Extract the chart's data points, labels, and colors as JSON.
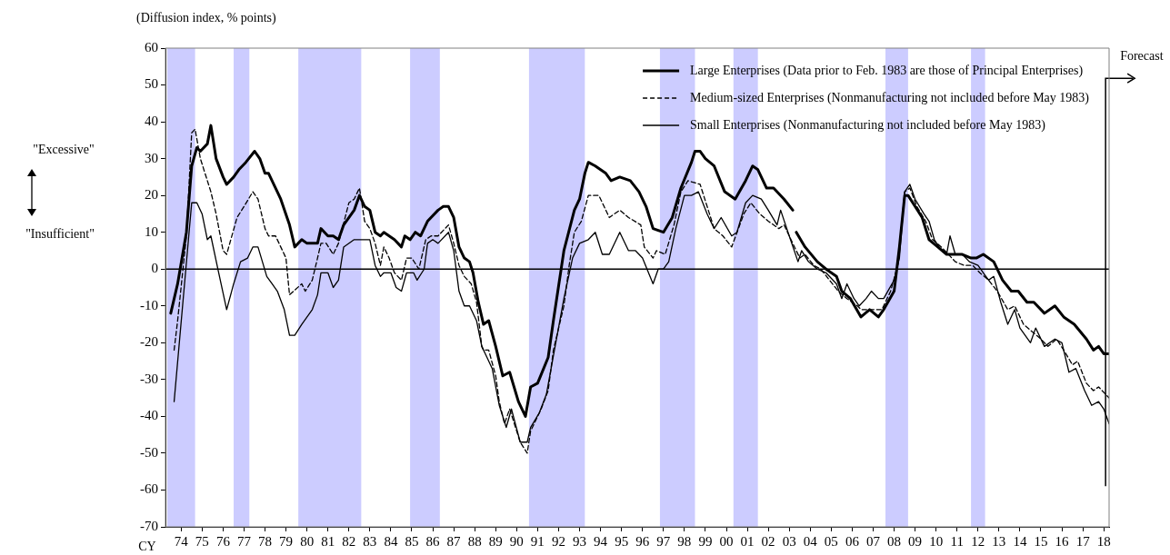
{
  "chart_data": {
    "type": "line",
    "ylabel": "(Diffusion index, % points)",
    "xlabel": "CY",
    "annotations": [
      "\"Excessive\"",
      "\"Insufficient\""
    ],
    "xlim": [
      "1973-10",
      "2018-10"
    ],
    "xticks": [
      {
        "value": "1974-07",
        "label": "74"
      },
      {
        "value": "1975-07",
        "label": "75"
      },
      {
        "value": "1976-07",
        "label": "76"
      },
      {
        "value": "1977-07",
        "label": "77"
      },
      {
        "value": "1978-07",
        "label": "78"
      },
      {
        "value": "1979-07",
        "label": "79"
      },
      {
        "value": "1980-07",
        "label": "80"
      },
      {
        "value": "1981-07",
        "label": "81"
      },
      {
        "value": "1982-07",
        "label": "82"
      },
      {
        "value": "1983-07",
        "label": "83"
      },
      {
        "value": "1984-07",
        "label": "84"
      },
      {
        "value": "1985-07",
        "label": "85"
      },
      {
        "value": "1986-07",
        "label": "86"
      },
      {
        "value": "1987-07",
        "label": "87"
      },
      {
        "value": "1988-07",
        "label": "88"
      },
      {
        "value": "1989-07",
        "label": "89"
      },
      {
        "value": "1990-07",
        "label": "90"
      },
      {
        "value": "1991-07",
        "label": "91"
      },
      {
        "value": "1992-07",
        "label": "92"
      },
      {
        "value": "1993-07",
        "label": "93"
      },
      {
        "value": "1994-07",
        "label": "94"
      },
      {
        "value": "1995-07",
        "label": "95"
      },
      {
        "value": "1996-07",
        "label": "96"
      },
      {
        "value": "1997-07",
        "label": "97"
      },
      {
        "value": "1998-07",
        "label": "98"
      },
      {
        "value": "1999-07",
        "label": "99"
      },
      {
        "value": "2000-07",
        "label": "00"
      },
      {
        "value": "2001-07",
        "label": "01"
      },
      {
        "value": "2002-07",
        "label": "02"
      },
      {
        "value": "2003-07",
        "label": "03"
      },
      {
        "value": "2004-07",
        "label": "04"
      },
      {
        "value": "2005-07",
        "label": "05"
      },
      {
        "value": "2006-07",
        "label": "06"
      },
      {
        "value": "2007-07",
        "label": "07"
      },
      {
        "value": "2008-07",
        "label": "08"
      },
      {
        "value": "2009-07",
        "label": "09"
      },
      {
        "value": "2010-07",
        "label": "10"
      },
      {
        "value": "2011-07",
        "label": "11"
      },
      {
        "value": "2012-07",
        "label": "12"
      },
      {
        "value": "2013-07",
        "label": "13"
      },
      {
        "value": "2014-07",
        "label": "14"
      },
      {
        "value": "2015-07",
        "label": "15"
      },
      {
        "value": "2016-07",
        "label": "16"
      },
      {
        "value": "2017-07",
        "label": "17"
      },
      {
        "value": "2018-07",
        "label": "18"
      }
    ],
    "ylim": [
      -70,
      60
    ],
    "yticks": [
      -70,
      -60,
      -50,
      -40,
      -30,
      -20,
      -10,
      0,
      10,
      20,
      30,
      40,
      50,
      60
    ],
    "grid": false,
    "legend": "top right",
    "marker": "none",
    "series": [
      {
        "name": "Large Enterprises (Data prior to Feb. 1983 are those of Principal Enterprises)",
        "color": "#000000",
        "line_style": "solid",
        "x": [
          "1974-01",
          "1974-05",
          "1974-10",
          "1975-01",
          "1975-04",
          "1975-06",
          "1975-10",
          "1975-12",
          "1976-03",
          "1976-07",
          "1976-09",
          "1977-01",
          "1977-04",
          "1977-08",
          "1978-01",
          "1978-04",
          "1978-07",
          "1978-09",
          "1979-01",
          "1979-04",
          "1979-09",
          "1979-12",
          "1980-04",
          "1980-07",
          "1981-01",
          "1981-03",
          "1981-07",
          "1981-10",
          "1982-01",
          "1982-04",
          "1982-10",
          "1983-01",
          "1983-04",
          "1983-07",
          "1983-10",
          "1984-01",
          "1984-03",
          "1984-09",
          "1985-01",
          "1985-03",
          "1985-06",
          "1985-09",
          "1985-12",
          "1986-04",
          "1986-10",
          "1987-01",
          "1987-04",
          "1987-07",
          "1987-10",
          "1988-01",
          "1988-04",
          "1988-06",
          "1988-09",
          "1988-12",
          "1989-03",
          "1989-07",
          "1989-11",
          "1990-03",
          "1990-08",
          "1990-12",
          "1991-03",
          "1991-07",
          "1992-01",
          "1992-04",
          "1992-10",
          "1993-04",
          "1993-07",
          "1993-10",
          "1993-12",
          "1994-04",
          "1994-10",
          "1995-01",
          "1995-06",
          "1995-12",
          "1996-05",
          "1996-09",
          "1997-01",
          "1997-07",
          "1997-12",
          "1998-05",
          "1998-11",
          "1999-01",
          "1999-04",
          "1999-07",
          "1999-12",
          "2000-06",
          "2000-12",
          "2001-06",
          "2001-10",
          "2002-01",
          "2002-06",
          "2002-10",
          "2003-04",
          "2003-09",
          "2003-10",
          "2003-11",
          "2004-04",
          "2004-11",
          "2005-04",
          "2005-10",
          "2006-01",
          "2006-06",
          "2006-12",
          "2007-05",
          "2007-10",
          "2008-01",
          "2008-07",
          "2008-10",
          "2009-01",
          "2009-03",
          "2009-07",
          "2009-11",
          "2010-03",
          "2010-08",
          "2011-01",
          "2011-05",
          "2011-10",
          "2012-03",
          "2012-06",
          "2012-10",
          "2013-04",
          "2013-09",
          "2014-02",
          "2014-06",
          "2014-11",
          "2015-03",
          "2015-09",
          "2016-03",
          "2016-08",
          "2017-02",
          "2017-09",
          "2018-01",
          "2018-04",
          "2018-07",
          "2018-10"
        ],
        "values": [
          -12,
          -4,
          10,
          28,
          33,
          32,
          34,
          39,
          30,
          25,
          23,
          25,
          27,
          29,
          32,
          30,
          26,
          26,
          22,
          19,
          12,
          6,
          8,
          7,
          7,
          11,
          9,
          9,
          8,
          12,
          16,
          20,
          17,
          16,
          10,
          9,
          10,
          8,
          6,
          9,
          8,
          10,
          9,
          13,
          16,
          17,
          17,
          14,
          6,
          3,
          2,
          -1,
          -9,
          -15,
          -14,
          -21,
          -29,
          -28,
          -36,
          -40,
          -32,
          -31,
          -24,
          -14,
          5,
          16,
          19,
          26,
          29,
          28,
          26,
          24,
          25,
          24,
          21,
          17,
          11,
          10,
          14,
          22,
          29,
          32,
          32,
          30,
          28,
          21,
          19,
          24,
          28,
          27,
          22,
          22,
          19,
          16,
          null,
          10,
          6,
          2,
          0,
          -2,
          -6,
          -8,
          -13,
          -11,
          -13,
          -11,
          -6,
          6,
          20,
          20,
          17,
          14,
          8,
          6,
          4,
          4,
          4,
          3,
          3,
          4,
          2,
          -3,
          -6,
          -6,
          -9,
          -9,
          -12,
          -10,
          -13,
          -15,
          -19,
          -22,
          -21,
          -23,
          -23
        ]
      },
      {
        "name": "Medium-sized Enterprises (Nonmanufacturing not included before May 1983)",
        "color": "#000000",
        "line_style": "dashed",
        "x": [
          "1974-03",
          "1974-05",
          "1974-10",
          "1975-01",
          "1975-03",
          "1975-06",
          "1975-12",
          "1976-03",
          "1976-07",
          "1976-09",
          "1977-03",
          "1977-07",
          "1977-12",
          "1978-03",
          "1978-07",
          "1978-09",
          "1979-01",
          "1979-07",
          "1979-09",
          "1980-04",
          "1980-06",
          "1980-10",
          "1981-01",
          "1981-03",
          "1981-06",
          "1981-10",
          "1982-01",
          "1982-07",
          "1982-10",
          "1983-01",
          "1983-04",
          "1983-07",
          "1983-10",
          "1984-01",
          "1984-03",
          "1984-06",
          "1984-09",
          "1985-01",
          "1985-04",
          "1985-07",
          "1985-11",
          "1986-03",
          "1986-06",
          "1986-10",
          "1987-04",
          "1987-07",
          "1987-10",
          "1988-01",
          "1988-05",
          "1988-08",
          "1988-11",
          "1988-12",
          "1989-03",
          "1989-07",
          "1989-09",
          "1989-12",
          "1990-03",
          "1990-09",
          "1991-01",
          "1991-03",
          "1991-09",
          "1992-01",
          "1992-04",
          "1992-10",
          "1993-01",
          "1993-04",
          "1993-08",
          "1993-12",
          "1994-06",
          "1994-12",
          "1995-06",
          "1995-11",
          "1996-06",
          "1996-08",
          "1997-01",
          "1997-03",
          "1997-08",
          "1998-01",
          "1998-05",
          "1998-09",
          "1999-04",
          "1999-08",
          "1999-12",
          "2000-05",
          "2000-10",
          "2001-05",
          "2001-09",
          "2002-02",
          "2002-07",
          "2003-01",
          "2003-04",
          "2003-10",
          "2004-01",
          "2004-04",
          "2004-09",
          "2005-01",
          "2005-06",
          "2005-11",
          "2006-04",
          "2006-10",
          "2006-12",
          "2007-06",
          "2007-12",
          "2008-05",
          "2008-09",
          "2009-01",
          "2009-04",
          "2009-08",
          "2010-01",
          "2010-05",
          "2010-10",
          "2011-02",
          "2011-06",
          "2011-11",
          "2012-04",
          "2012-08",
          "2013-01",
          "2013-06",
          "2013-12",
          "2014-04",
          "2014-09",
          "2015-02",
          "2015-07",
          "2015-11",
          "2016-04",
          "2016-08",
          "2017-01",
          "2017-04",
          "2017-09",
          "2018-01",
          "2018-04",
          "2018-10"
        ],
        "values": [
          -22,
          -14,
          9,
          37,
          38,
          30,
          21,
          15,
          5,
          4,
          14,
          17,
          21,
          19,
          11,
          9,
          9,
          3,
          -7,
          -4,
          -6,
          -3,
          3,
          7,
          7,
          4,
          7,
          18,
          19,
          22,
          13,
          11,
          7,
          1,
          6,
          3,
          -1,
          -3,
          3,
          3,
          0,
          8,
          9,
          9,
          12,
          7,
          1,
          -2,
          -4,
          -9,
          -21,
          -22,
          -22,
          -29,
          -36,
          -42,
          -38,
          -47,
          -50,
          -44,
          -38,
          -33,
          -22,
          -10,
          1,
          10,
          13,
          20,
          20,
          14,
          16,
          14,
          12,
          6,
          3,
          5,
          4,
          12,
          21,
          24,
          23,
          17,
          11,
          9,
          6,
          15,
          18,
          15,
          13,
          11,
          12,
          6,
          3,
          4,
          1,
          0,
          -3,
          -6,
          -8,
          -10,
          -11,
          -11,
          -11,
          -6,
          1,
          21,
          22,
          17,
          13,
          8,
          6,
          4,
          2,
          1,
          1,
          -1,
          -3,
          -6,
          -11,
          -10,
          -15,
          -17,
          -19,
          -21,
          -19,
          -22,
          -26,
          -25,
          -31,
          -33,
          -32,
          -35
        ]
      },
      {
        "name": "Small Enterprises (Nonmanufacturing not included before May 1983)",
        "color": "#000000",
        "line_style": "solid",
        "x": [
          "1974-03",
          "1975-01",
          "1975-04",
          "1975-07",
          "1975-10",
          "1975-12",
          "1976-04",
          "1976-09",
          "1977-01",
          "1977-05",
          "1977-09",
          "1977-12",
          "1978-03",
          "1978-08",
          "1978-11",
          "1979-02",
          "1979-06",
          "1979-09",
          "1979-12",
          "1980-04",
          "1980-10",
          "1981-01",
          "1981-03",
          "1981-07",
          "1981-10",
          "1982-01",
          "1982-04",
          "1982-10",
          "1983-07",
          "1983-10",
          "1984-01",
          "1984-03",
          "1984-07",
          "1984-10",
          "1985-01",
          "1985-04",
          "1985-08",
          "1985-10",
          "1986-02",
          "1986-04",
          "1986-07",
          "1986-10",
          "1987-04",
          "1987-07",
          "1987-10",
          "1988-01",
          "1988-04",
          "1988-08",
          "1988-11",
          "1989-01",
          "1989-05",
          "1989-09",
          "1990-01",
          "1990-04",
          "1990-09",
          "1991-01",
          "1991-03",
          "1991-08",
          "1991-12",
          "1992-05",
          "1992-10",
          "1993-03",
          "1993-07",
          "1993-12",
          "1994-04",
          "1994-08",
          "1994-12",
          "1995-06",
          "1995-11",
          "1996-03",
          "1996-07",
          "1997-01",
          "1997-04",
          "1997-07",
          "1997-10",
          "1998-02",
          "1998-07",
          "1998-11",
          "1999-03",
          "1999-08",
          "1999-12",
          "2000-04",
          "2000-10",
          "2001-01",
          "2001-06",
          "2001-10",
          "2002-03",
          "2002-07",
          "2002-12",
          "2003-02",
          "2003-07",
          "2003-12",
          "2004-02",
          "2004-06",
          "2004-11",
          "2005-04",
          "2005-10",
          "2006-01",
          "2006-04",
          "2006-08",
          "2006-11",
          "2007-03",
          "2007-06",
          "2007-10",
          "2008-01",
          "2008-07",
          "2008-10",
          "2009-01",
          "2009-04",
          "2009-07",
          "2009-12",
          "2010-03",
          "2010-06",
          "2010-10",
          "2011-01",
          "2011-03",
          "2011-06",
          "2011-10",
          "2012-02",
          "2012-07",
          "2012-10",
          "2013-01",
          "2013-04",
          "2013-08",
          "2013-12",
          "2014-04",
          "2014-07",
          "2015-01",
          "2015-04",
          "2015-09",
          "2016-03",
          "2016-07",
          "2016-11",
          "2017-03",
          "2017-08",
          "2017-12",
          "2018-04",
          "2018-07",
          "2018-10"
        ],
        "values": [
          -36,
          18,
          18,
          15,
          8,
          9,
          0,
          -11,
          -4,
          2,
          3,
          6,
          6,
          -2,
          -4,
          -6,
          -11,
          -18,
          -18,
          -15,
          -11,
          -7,
          -1,
          -1,
          -5,
          -3,
          6,
          8,
          8,
          1,
          -2,
          -1,
          -1,
          -5,
          -6,
          -1,
          -1,
          -3,
          0,
          7,
          8,
          7,
          10,
          5,
          -6,
          -10,
          -10,
          -14,
          -21,
          -23,
          -27,
          -37,
          -43,
          -38,
          -47,
          -47,
          -43,
          -39,
          -34,
          -21,
          -8,
          3,
          7,
          8,
          10,
          4,
          4,
          10,
          5,
          5,
          3,
          -4,
          0,
          0,
          2,
          11,
          20,
          20,
          21,
          15,
          11,
          14,
          9,
          10,
          18,
          20,
          19,
          16,
          12,
          16,
          9,
          2,
          5,
          2,
          0,
          -1,
          -4,
          -8,
          -4,
          -8,
          -10,
          -8,
          -6,
          -8,
          -8,
          -3,
          3,
          21,
          23,
          19,
          15,
          13,
          8,
          5,
          4,
          9,
          4,
          4,
          2,
          1,
          -1,
          -3,
          -2,
          -9,
          -15,
          -11,
          -16,
          -20,
          -16,
          -21,
          -19,
          -20,
          -28,
          -27,
          -33,
          -37,
          -36,
          -38,
          -42
        ]
      }
    ],
    "bands": [
      {
        "axis": "x",
        "from": "1973-11",
        "to": "1975-03",
        "color": "#ccccff"
      },
      {
        "axis": "x",
        "from": "1977-01",
        "to": "1977-10",
        "color": "#ccccff"
      },
      {
        "axis": "x",
        "from": "1980-02",
        "to": "1983-02",
        "color": "#ccccff"
      },
      {
        "axis": "x",
        "from": "1985-06",
        "to": "1986-11",
        "color": "#ccccff"
      },
      {
        "axis": "x",
        "from": "1991-02",
        "to": "1993-10",
        "color": "#ccccff"
      },
      {
        "axis": "x",
        "from": "1997-05",
        "to": "1999-01",
        "color": "#ccccff"
      },
      {
        "axis": "x",
        "from": "2000-11",
        "to": "2002-01",
        "color": "#ccccff"
      },
      {
        "axis": "x",
        "from": "2008-02",
        "to": "2009-03",
        "color": "#ccccff"
      },
      {
        "axis": "x",
        "from": "2012-03",
        "to": "2012-11",
        "color": "#ccccff"
      }
    ],
    "ref_lines": [
      {
        "axis": "y",
        "value": 0,
        "color": "#000000"
      },
      {
        "axis": "x",
        "value": "2018-08",
        "label": "Forecast",
        "color": "#000000"
      }
    ]
  }
}
